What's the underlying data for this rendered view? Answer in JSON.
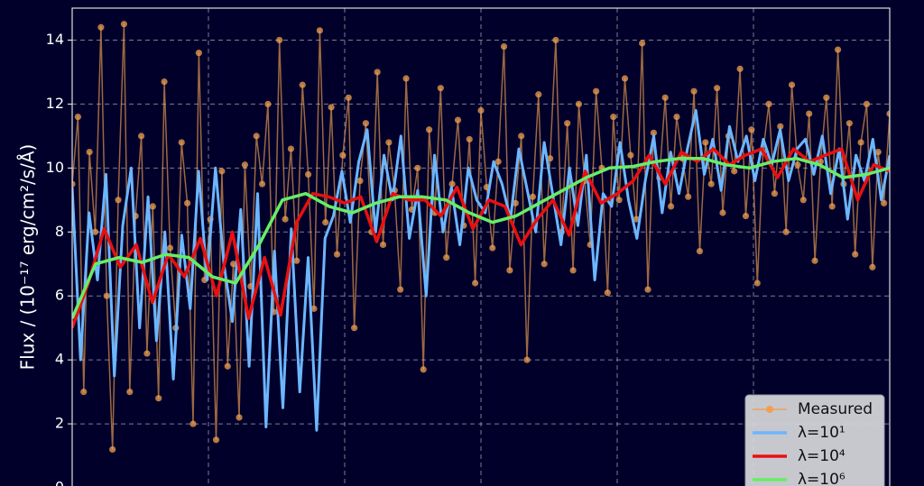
{
  "chart_data": {
    "type": "line",
    "y_label": "Flux / (10⁻¹⁷ erg/cm²/s/Å)",
    "ylim": [
      0,
      15
    ],
    "yticks": [
      0,
      2,
      4,
      6,
      8,
      10,
      12,
      14
    ],
    "grid": true,
    "legend": "lower right",
    "series": [
      {
        "name": "Measured",
        "color": "#f0a050",
        "marker": true,
        "values": [
          9.5,
          11.6,
          3.0,
          10.5,
          8.0,
          14.4,
          6.0,
          1.2,
          9.0,
          14.5,
          3.0,
          8.5,
          11.0,
          4.2,
          8.8,
          2.8,
          12.7,
          7.5,
          5.0,
          10.8,
          8.9,
          2.0,
          13.6,
          6.5,
          8.4,
          1.5,
          9.9,
          3.8,
          7.0,
          2.2,
          10.1,
          6.3,
          11.0,
          9.5,
          12.0,
          5.5,
          14.0,
          8.4,
          10.6,
          7.1,
          12.6,
          9.8,
          5.6,
          14.3,
          8.3,
          11.9,
          7.3,
          10.4,
          12.2,
          5.0,
          9.6,
          11.4,
          8.0,
          13.0,
          7.6,
          10.8,
          9.3,
          6.2,
          12.8,
          8.7,
          10.0,
          3.7,
          11.2,
          8.6,
          12.5,
          7.2,
          9.5,
          11.5,
          8.2,
          10.9,
          6.4,
          11.8,
          9.4,
          7.5,
          10.2,
          13.8,
          6.8,
          8.9,
          11.0,
          4.0,
          9.1,
          12.3,
          7.0,
          10.3,
          14.0,
          8.0,
          11.4,
          6.8,
          12.0,
          9.6,
          7.6,
          12.4,
          10.0,
          6.1,
          11.6,
          9.0,
          12.8,
          10.4,
          8.4,
          13.9,
          6.2,
          11.1,
          9.7,
          12.2,
          8.8,
          11.6,
          10.3,
          9.1,
          12.4,
          7.4,
          10.8,
          9.5,
          12.5,
          8.6,
          11.0,
          9.9,
          13.1,
          8.5,
          11.2,
          6.4,
          10.5,
          12.0,
          9.2,
          11.3,
          8.0,
          12.6,
          10.1,
          9.0,
          11.7,
          7.1,
          10.2,
          12.2,
          8.8,
          13.7,
          9.5,
          11.4,
          7.3,
          10.8,
          12.0,
          6.9,
          10.5,
          8.9,
          11.7
        ]
      },
      {
        "name": "λ=10¹",
        "color": "#6cb6ff",
        "values": [
          9.4,
          4.0,
          8.6,
          6.5,
          9.8,
          3.5,
          8.2,
          10.0,
          5.0,
          9.1,
          4.6,
          8.0,
          3.4,
          7.9,
          5.6,
          9.9,
          6.5,
          10.0,
          7.0,
          5.2,
          8.7,
          3.8,
          9.2,
          1.9,
          7.4,
          2.5,
          8.1,
          3.0,
          7.2,
          1.8,
          7.8,
          8.5,
          9.9,
          8.3,
          10.2,
          11.2,
          8.0,
          10.4,
          9.0,
          11.0,
          7.8,
          9.3,
          6.0,
          10.4,
          8.0,
          9.4,
          7.6,
          10.0,
          9.0,
          8.6,
          10.2,
          9.5,
          8.4,
          10.6,
          9.3,
          8.0,
          10.8,
          9.2,
          7.6,
          10.0,
          8.2,
          10.4,
          6.5,
          9.2,
          8.8,
          10.8,
          9.0,
          7.8,
          9.6,
          11.0,
          8.6,
          10.5,
          9.2,
          10.6,
          11.8,
          9.8,
          10.9,
          9.3,
          11.3,
          10.2,
          11.0,
          9.6,
          10.9,
          10.1,
          11.2,
          9.6,
          10.6,
          10.9,
          9.8,
          11.0,
          9.2,
          10.6,
          8.4,
          10.4,
          9.6,
          10.9,
          9.0,
          10.4
        ]
      },
      {
        "name": "λ=10⁴",
        "color": "#e81010",
        "values": [
          5.0,
          6.4,
          8.1,
          6.9,
          7.6,
          5.8,
          7.3,
          6.6,
          7.8,
          6.0,
          8.0,
          5.3,
          7.2,
          5.4,
          8.3,
          9.2,
          9.1,
          8.9,
          9.1,
          7.7,
          9.2,
          9.0,
          9.0,
          8.5,
          9.4,
          8.1,
          9.0,
          8.8,
          7.6,
          8.4,
          9.0,
          7.9,
          9.9,
          8.9,
          9.2,
          9.6,
          10.4,
          9.5,
          10.5,
          10.2,
          10.6,
          10.1,
          10.4,
          10.6,
          9.7,
          10.6,
          10.2,
          10.4,
          10.6,
          9.0,
          10.1,
          9.9
        ]
      },
      {
        "name": "λ=10⁶",
        "color": "#66ee66",
        "values": [
          5.3,
          7.0,
          7.2,
          7.05,
          7.3,
          7.2,
          6.6,
          6.4,
          7.6,
          9.0,
          9.2,
          8.8,
          8.6,
          8.9,
          9.1,
          9.1,
          9.0,
          8.6,
          8.3,
          8.5,
          8.9,
          9.3,
          9.7,
          10.0,
          10.05,
          10.2,
          10.3,
          10.3,
          10.1,
          10.0,
          10.2,
          10.3,
          10.1,
          9.7,
          9.8,
          10.0
        ]
      }
    ]
  }
}
